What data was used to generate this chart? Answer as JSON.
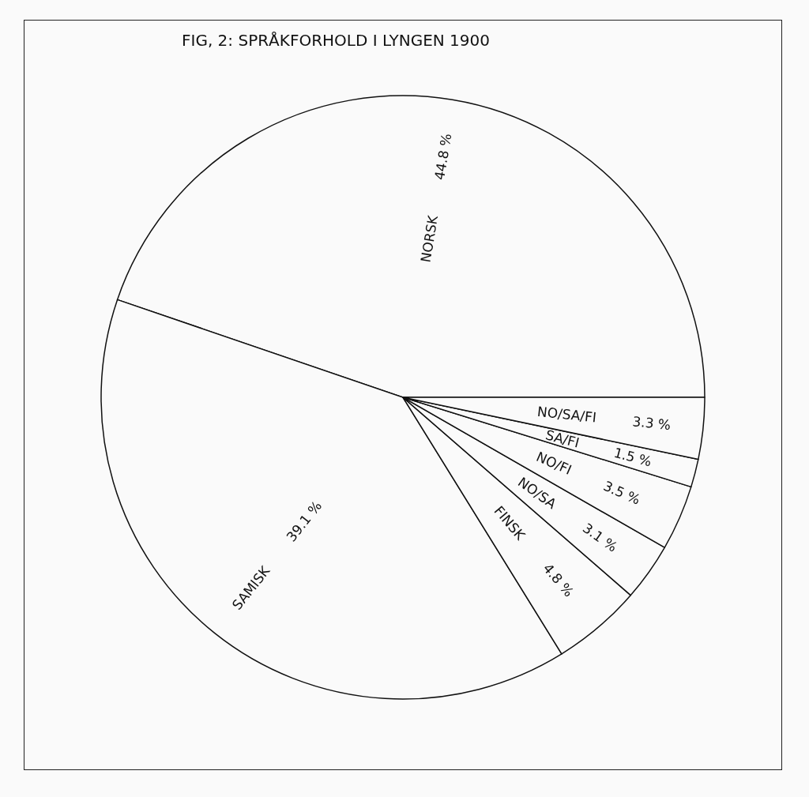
{
  "chart_data": {
    "type": "pie",
    "title": "FIG, 2: SPRÅKFORHOLD I LYNGEN 1900",
    "categories": [
      "NORSK",
      "SAMISK",
      "FINSK",
      "NO/SA",
      "NO/FI",
      "SA/FI",
      "NO/SA/FI"
    ],
    "values": [
      44.8,
      39.1,
      4.8,
      3.1,
      3.5,
      1.5,
      3.3
    ],
    "value_labels": [
      "44.8 %",
      "39.1 %",
      "4.8 %",
      "3.1 %",
      "3.5 %",
      "1.5 %",
      "3.3 %"
    ],
    "colors": [
      "#fafafa",
      "#fafafa",
      "#fafafa",
      "#fafafa",
      "#fafafa",
      "#fafafa",
      "#fafafa"
    ]
  }
}
